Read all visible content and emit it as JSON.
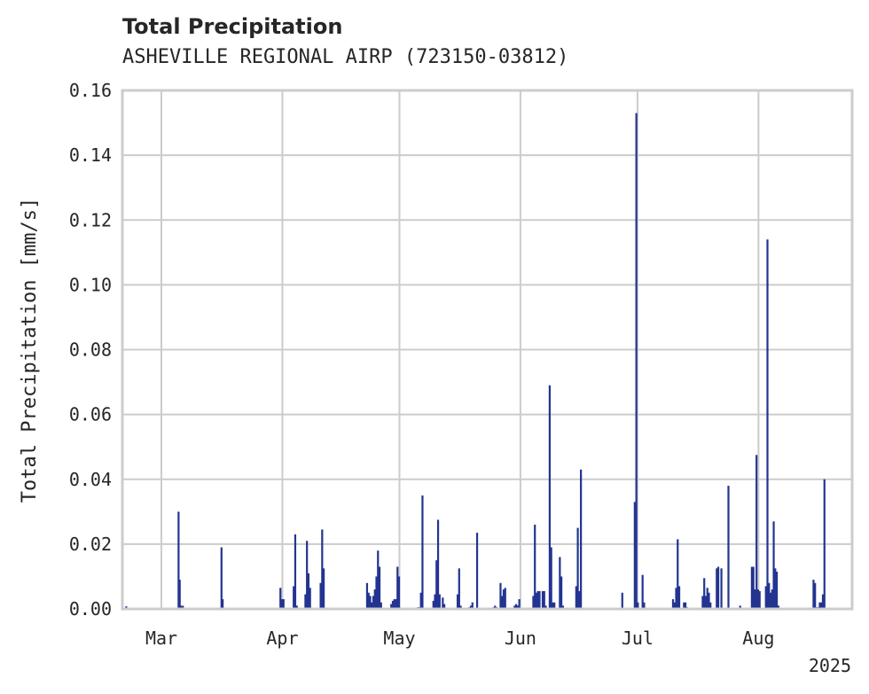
{
  "chart_data": {
    "type": "bar",
    "title": "Total Precipitation",
    "subtitle": "ASHEVILLE REGIONAL AIRP (723150-03812)",
    "xlabel": "",
    "ylabel": "Total Precipitation [mm/s]",
    "x_year_label": "2025",
    "xlim_day": [
      -10,
      177
    ],
    "ylim": [
      0,
      0.16
    ],
    "yticks": [
      0.0,
      0.02,
      0.04,
      0.06,
      0.08,
      0.1,
      0.12,
      0.14,
      0.16
    ],
    "ytick_labels": [
      "0.00",
      "0.02",
      "0.04",
      "0.06",
      "0.08",
      "0.10",
      "0.12",
      "0.14",
      "0.16"
    ],
    "xticks": [
      {
        "day": 0,
        "label": "Mar"
      },
      {
        "day": 31,
        "label": "Apr"
      },
      {
        "day": 61,
        "label": "May"
      },
      {
        "day": 92,
        "label": "Jun"
      },
      {
        "day": 122,
        "label": "Jul"
      },
      {
        "day": 153,
        "label": "Aug"
      }
    ],
    "grid": true,
    "series_color": "#233491",
    "series": [
      {
        "name": "Total Precipitation",
        "points": [
          [
            -9,
            0.0008
          ],
          [
            4.4,
            0.03
          ],
          [
            4.7,
            0.009
          ],
          [
            5.0,
            0.001
          ],
          [
            5.5,
            0.001
          ],
          [
            15.4,
            0.019
          ],
          [
            15.7,
            0.003
          ],
          [
            30.5,
            0.0065
          ],
          [
            30.9,
            0.003
          ],
          [
            31.3,
            0.003
          ],
          [
            33.9,
            0.007
          ],
          [
            34.3,
            0.023
          ],
          [
            34.7,
            0.001
          ],
          [
            36.9,
            0.0045
          ],
          [
            37.3,
            0.021
          ],
          [
            37.7,
            0.011
          ],
          [
            38.1,
            0.0065
          ],
          [
            40.8,
            0.008
          ],
          [
            41.2,
            0.0245
          ],
          [
            41.6,
            0.0125
          ],
          [
            52.7,
            0.008
          ],
          [
            53.1,
            0.005
          ],
          [
            53.5,
            0.004
          ],
          [
            53.9,
            0.002
          ],
          [
            54.3,
            0.004
          ],
          [
            54.7,
            0.006
          ],
          [
            55.1,
            0.01
          ],
          [
            55.5,
            0.018
          ],
          [
            55.9,
            0.013
          ],
          [
            56.3,
            0.002
          ],
          [
            58.9,
            0.0015
          ],
          [
            59.3,
            0.0025
          ],
          [
            59.7,
            0.003
          ],
          [
            60.1,
            0.003
          ],
          [
            60.5,
            0.013
          ],
          [
            60.9,
            0.01
          ],
          [
            65.7,
            0.0005
          ],
          [
            66.1,
            0.0005
          ],
          [
            66.5,
            0.005
          ],
          [
            66.9,
            0.035
          ],
          [
            69.7,
            0.0025
          ],
          [
            70.1,
            0.0045
          ],
          [
            70.5,
            0.015
          ],
          [
            70.9,
            0.0275
          ],
          [
            71.3,
            0.0045
          ],
          [
            72.1,
            0.0035
          ],
          [
            72.5,
            0.0015
          ],
          [
            75.9,
            0.0045
          ],
          [
            76.3,
            0.0125
          ],
          [
            76.7,
            0.001
          ],
          [
            78.9,
            0.0005
          ],
          [
            79.3,
            0.001
          ],
          [
            79.7,
            0.002
          ],
          [
            80.9,
            0.0235
          ],
          [
            85.1,
            0.0005
          ],
          [
            85.5,
            0.001
          ],
          [
            85.9,
            0.0005
          ],
          [
            86.9,
            0.008
          ],
          [
            87.3,
            0.004
          ],
          [
            87.7,
            0.006
          ],
          [
            88.1,
            0.0065
          ],
          [
            90.5,
            0.001
          ],
          [
            90.9,
            0.0015
          ],
          [
            91.3,
            0.001
          ],
          [
            91.7,
            0.003
          ],
          [
            95.3,
            0.004
          ],
          [
            95.7,
            0.026
          ],
          [
            96.1,
            0.005
          ],
          [
            96.5,
            0.0055
          ],
          [
            96.9,
            0.0055
          ],
          [
            97.7,
            0.0055
          ],
          [
            98.1,
            0.0055
          ],
          [
            98.5,
            0.001
          ],
          [
            99.5,
            0.069
          ],
          [
            99.9,
            0.019
          ],
          [
            100.3,
            0.002
          ],
          [
            100.7,
            0.002
          ],
          [
            102.1,
            0.016
          ],
          [
            102.5,
            0.01
          ],
          [
            102.9,
            0.001
          ],
          [
            106.3,
            0.007
          ],
          [
            106.7,
            0.025
          ],
          [
            107.1,
            0.0055
          ],
          [
            107.5,
            0.043
          ],
          [
            118.1,
            0.005
          ],
          [
            121.3,
            0.033
          ],
          [
            121.7,
            0.153
          ],
          [
            122.1,
            0.002
          ],
          [
            123.3,
            0.0105
          ],
          [
            123.7,
            0.002
          ],
          [
            131.1,
            0.003
          ],
          [
            131.5,
            0.002
          ],
          [
            131.9,
            0.0065
          ],
          [
            132.3,
            0.0215
          ],
          [
            132.7,
            0.007
          ],
          [
            133.9,
            0.002
          ],
          [
            134.3,
            0.002
          ],
          [
            134.7,
            0.0005
          ],
          [
            138.7,
            0.004
          ],
          [
            139.1,
            0.0095
          ],
          [
            139.5,
            0.004
          ],
          [
            139.9,
            0.0065
          ],
          [
            140.3,
            0.005
          ],
          [
            140.7,
            0.002
          ],
          [
            142.3,
            0.0125
          ],
          [
            142.7,
            0.013
          ],
          [
            143.5,
            0.0125
          ],
          [
            145.3,
            0.038
          ],
          [
            148.3,
            0.001
          ],
          [
            151.3,
            0.013
          ],
          [
            151.7,
            0.013
          ],
          [
            152.1,
            0.006
          ],
          [
            152.5,
            0.0475
          ],
          [
            152.9,
            0.006
          ],
          [
            153.3,
            0.0055
          ],
          [
            154.9,
            0.007
          ],
          [
            155.3,
            0.114
          ],
          [
            155.7,
            0.008
          ],
          [
            156.1,
            0.005
          ],
          [
            156.5,
            0.006
          ],
          [
            156.9,
            0.027
          ],
          [
            157.3,
            0.0125
          ],
          [
            157.7,
            0.0115
          ],
          [
            158.1,
            0.001
          ],
          [
            167.1,
            0.009
          ],
          [
            167.5,
            0.008
          ],
          [
            167.9,
            0.0005
          ],
          [
            168.3,
            0.0005
          ],
          [
            168.7,
            0.002
          ],
          [
            169.1,
            0.002
          ],
          [
            169.5,
            0.0045
          ],
          [
            169.9,
            0.04
          ]
        ]
      }
    ]
  }
}
